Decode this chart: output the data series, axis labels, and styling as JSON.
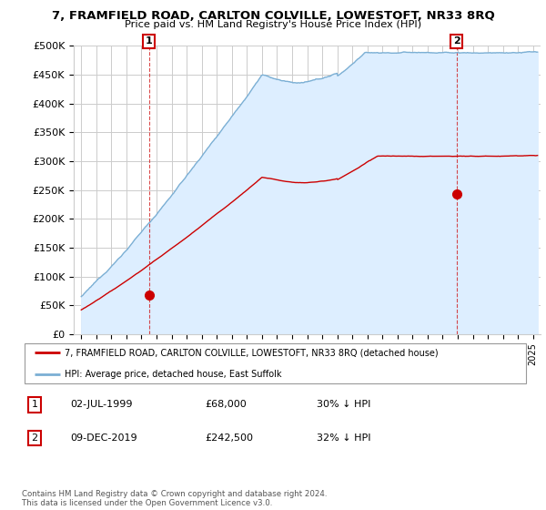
{
  "title": "7, FRAMFIELD ROAD, CARLTON COLVILLE, LOWESTOFT, NR33 8RQ",
  "subtitle": "Price paid vs. HM Land Registry's House Price Index (HPI)",
  "ylabel_ticks": [
    "£0",
    "£50K",
    "£100K",
    "£150K",
    "£200K",
    "£250K",
    "£300K",
    "£350K",
    "£400K",
    "£450K",
    "£500K"
  ],
  "ytick_values": [
    0,
    50000,
    100000,
    150000,
    200000,
    250000,
    300000,
    350000,
    400000,
    450000,
    500000
  ],
  "ylim": [
    0,
    500000
  ],
  "xlim_start": 1994.5,
  "xlim_end": 2025.5,
  "sale1_date": 1999.5,
  "sale1_price": 68000,
  "sale2_date": 2019.92,
  "sale2_price": 242500,
  "legend_line1": "7, FRAMFIELD ROAD, CARLTON COLVILLE, LOWESTOFT, NR33 8RQ (detached house)",
  "legend_line2": "HPI: Average price, detached house, East Suffolk",
  "annotation1_date": "02-JUL-1999",
  "annotation1_price": "£68,000",
  "annotation1_hpi": "30% ↓ HPI",
  "annotation2_date": "09-DEC-2019",
  "annotation2_price": "£242,500",
  "annotation2_hpi": "32% ↓ HPI",
  "footer": "Contains HM Land Registry data © Crown copyright and database right 2024.\nThis data is licensed under the Open Government Licence v3.0.",
  "sale_color": "#cc0000",
  "hpi_color": "#7bafd4",
  "hpi_fill_color": "#ddeeff",
  "background_color": "#ffffff",
  "grid_color": "#cccccc"
}
